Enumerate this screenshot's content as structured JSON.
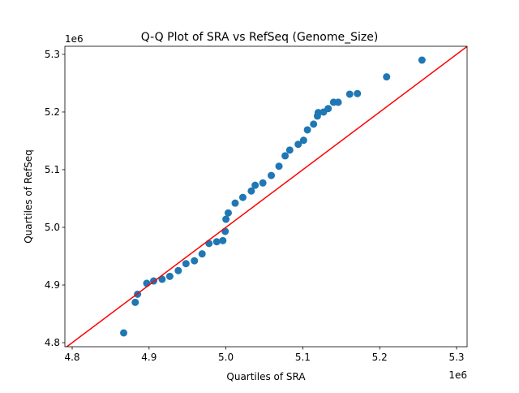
{
  "chart_data": {
    "type": "scatter",
    "title": "Q-Q Plot of SRA vs RefSeq (Genome_Size)",
    "xlabel": "Quartiles of SRA",
    "ylabel": "Quartiles of RefSeq",
    "x_offset_label": "1e6",
    "y_offset_label": "1e6",
    "xlim": [
      4.7905,
      5.3137
    ],
    "ylim": [
      4.793,
      5.314
    ],
    "xticks": [
      "4.8",
      "4.9",
      "5.0",
      "5.1",
      "5.2",
      "5.3"
    ],
    "yticks": [
      "4.8",
      "4.9",
      "5.0",
      "5.1",
      "5.2",
      "5.3"
    ],
    "grid": false,
    "point_color": "#1f77b4",
    "reference_line": {
      "description": "y = x",
      "color": "#ff0000"
    },
    "points": [
      [
        4.867,
        4.817
      ],
      [
        4.882,
        4.87
      ],
      [
        4.885,
        4.884
      ],
      [
        4.897,
        4.903
      ],
      [
        4.906,
        4.907
      ],
      [
        4.917,
        4.91
      ],
      [
        4.927,
        4.915
      ],
      [
        4.938,
        4.925
      ],
      [
        4.948,
        4.937
      ],
      [
        4.959,
        4.942
      ],
      [
        4.969,
        4.954
      ],
      [
        4.978,
        4.972
      ],
      [
        4.988,
        4.975
      ],
      [
        4.996,
        4.977
      ],
      [
        4.999,
        4.993
      ],
      [
        5.0,
        5.014
      ],
      [
        5.003,
        5.025
      ],
      [
        5.012,
        5.042
      ],
      [
        5.022,
        5.052
      ],
      [
        5.033,
        5.063
      ],
      [
        5.038,
        5.073
      ],
      [
        5.048,
        5.077
      ],
      [
        5.059,
        5.09
      ],
      [
        5.069,
        5.106
      ],
      [
        5.077,
        5.124
      ],
      [
        5.083,
        5.134
      ],
      [
        5.094,
        5.144
      ],
      [
        5.101,
        5.151
      ],
      [
        5.106,
        5.169
      ],
      [
        5.114,
        5.179
      ],
      [
        5.119,
        5.193
      ],
      [
        5.12,
        5.199
      ],
      [
        5.127,
        5.2
      ],
      [
        5.133,
        5.206
      ],
      [
        5.14,
        5.217
      ],
      [
        5.146,
        5.217
      ],
      [
        5.161,
        5.231
      ],
      [
        5.171,
        5.232
      ],
      [
        5.209,
        5.261
      ],
      [
        5.255,
        5.29
      ]
    ]
  }
}
